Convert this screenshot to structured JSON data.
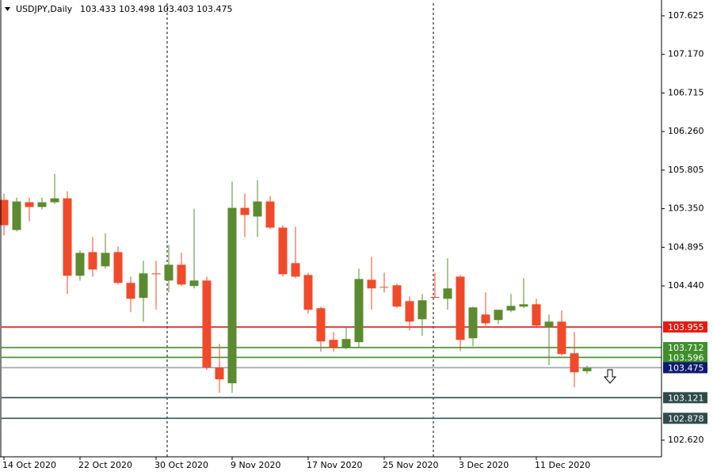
{
  "chart_data": {
    "type": "candlestick",
    "symbol": "USDJPY,Daily",
    "categories": [
      "14 Oct 2020",
      null,
      null,
      null,
      null,
      null,
      "22 Oct 2020",
      null,
      null,
      null,
      null,
      null,
      "30 Oct 2020",
      null,
      null,
      null,
      null,
      null,
      "9 Nov 2020",
      null,
      null,
      null,
      null,
      null,
      "17 Nov 2020",
      null,
      null,
      null,
      null,
      null,
      "25 Nov 2020",
      null,
      null,
      null,
      null,
      null,
      "3 Dec 2020",
      null,
      null,
      null,
      null,
      null,
      "11 Dec 2020",
      null,
      null,
      null,
      null
    ],
    "open": [
      105.454,
      105.099,
      105.426,
      105.37,
      105.426,
      105.472,
      104.559,
      104.838,
      104.671,
      104.838,
      104.475,
      104.298,
      104.587,
      104.503,
      104.689,
      104.438,
      104.503,
      103.477,
      103.291,
      105.36,
      105.258,
      105.435,
      105.127,
      104.708,
      104.568,
      104.177,
      103.803,
      103.71,
      103.776,
      104.512,
      104.428,
      104.447,
      104.26,
      104.046,
      104.31,
      104.288,
      104.549,
      103.822,
      104.102,
      104.037,
      104.149,
      104.195,
      104.223,
      103.953,
      104.018,
      103.645,
      103.433
    ],
    "high": [
      105.528,
      105.481,
      105.481,
      105.481,
      105.761,
      105.556,
      104.857,
      105.016,
      105.062,
      104.904,
      104.549,
      104.736,
      104.736,
      104.922,
      104.829,
      105.351,
      104.549,
      103.757,
      105.668,
      105.528,
      105.686,
      105.5,
      105.155,
      105.137,
      104.596,
      104.195,
      103.897,
      103.962,
      104.643,
      104.782,
      104.596,
      104.466,
      104.316,
      104.344,
      104.596,
      104.764,
      104.568,
      104.195,
      104.363,
      104.13,
      104.344,
      104.531,
      104.288,
      104.102,
      104.149,
      103.897,
      103.498
    ],
    "low": [
      105.034,
      105.081,
      105.202,
      105.342,
      105.407,
      104.344,
      104.503,
      104.549,
      104.643,
      104.456,
      104.13,
      104.018,
      104.158,
      104.363,
      104.438,
      104.41,
      103.449,
      103.179,
      103.179,
      105.016,
      105.016,
      105.109,
      104.549,
      104.531,
      104.111,
      103.664,
      103.664,
      103.692,
      103.71,
      104.158,
      104.363,
      104.177,
      103.916,
      103.85,
      104.298,
      104.158,
      103.673,
      103.729,
      103.971,
      103.99,
      104.13,
      104.177,
      103.962,
      103.505,
      103.617,
      103.245,
      103.403
    ],
    "close": [
      105.155,
      105.435,
      105.37,
      105.426,
      105.472,
      104.559,
      104.829,
      104.633,
      104.829,
      104.475,
      104.288,
      104.587,
      104.577,
      104.689,
      104.456,
      104.503,
      103.477,
      103.338,
      105.36,
      105.276,
      105.435,
      105.127,
      104.577,
      104.549,
      104.158,
      103.785,
      103.71,
      103.813,
      104.521,
      104.41,
      104.42,
      104.195,
      104.018,
      104.27,
      104.3,
      104.41,
      103.803,
      104.186,
      103.999,
      104.158,
      104.204,
      104.223,
      103.971,
      104.018,
      103.636,
      103.421,
      103.475
    ],
    "up_color": "#5b8a2f",
    "down_color": "#f04a2a",
    "ylim": [
      102.424,
      107.774
    ],
    "yticks": [
      107.625,
      {
        "value": 107.17,
        "label": "107.170"
      },
      106.715,
      {
        "value": 106.26,
        "label": "106.260"
      },
      105.805,
      {
        "value": 105.35,
        "label": "105.350"
      },
      104.895,
      {
        "value": 104.44,
        "label": "104.440"
      },
      {
        "value": 102.62,
        "label": "102.620"
      }
    ],
    "levels": [
      {
        "value": 103.955,
        "color": "#e8190f"
      },
      {
        "value": 103.712,
        "color": "#3f8f2c"
      },
      {
        "value": 103.596,
        "color": "#3f8f2c"
      },
      {
        "value": 103.475,
        "color": "#9aa3b5",
        "label_color": "#0e1a6e"
      },
      {
        "value": 103.121,
        "color": "#2f4a4a"
      },
      {
        "value": 102.878,
        "color": "#2f4a4a"
      }
    ]
  }
}
